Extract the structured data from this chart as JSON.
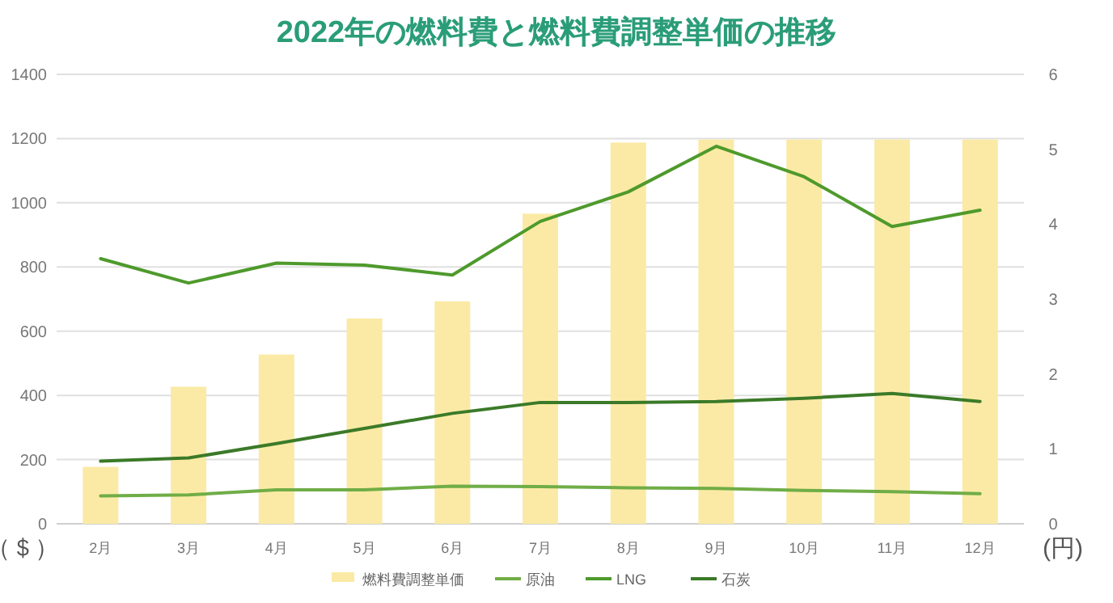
{
  "chart_data": {
    "type": "line",
    "title": "2022年の燃料費と燃料費調整単価の推移",
    "ylabel": "（＄）",
    "y2label": "(円)",
    "categories": [
      "2月",
      "3月",
      "4月",
      "5月",
      "6月",
      "7月",
      "8月",
      "9月",
      "10月",
      "11月",
      "12月"
    ],
    "series": [
      {
        "name": "燃料費調整単価",
        "type": "bar",
        "axis": "y2",
        "color": "#fbeaa5",
        "values": [
          0.76,
          1.83,
          2.26,
          2.74,
          2.97,
          4.14,
          5.09,
          5.13,
          5.13,
          5.13,
          5.13
        ]
      },
      {
        "name": "原油",
        "color": "#70ad47",
        "values": [
          87,
          90,
          106,
          106,
          117,
          116,
          112,
          110,
          104,
          100,
          94
        ]
      },
      {
        "name": "LNG",
        "color": "#4e9a2c",
        "values": [
          826,
          750,
          812,
          806,
          775,
          942,
          1034,
          1176,
          1081,
          926,
          977
        ]
      },
      {
        "name": "石炭",
        "color": "#3b7a28",
        "values": [
          195,
          205,
          250,
          297,
          344,
          378,
          378,
          381,
          391,
          406,
          381
        ]
      }
    ],
    "ylim": [
      0,
      1400
    ],
    "yticks": [
      0,
      200,
      400,
      600,
      800,
      1000,
      1200,
      1400
    ],
    "y2lim": [
      0,
      6
    ],
    "y2ticks": [
      0,
      1,
      2,
      3,
      4,
      5,
      6
    ],
    "grid": "y",
    "legend": "bottom"
  }
}
